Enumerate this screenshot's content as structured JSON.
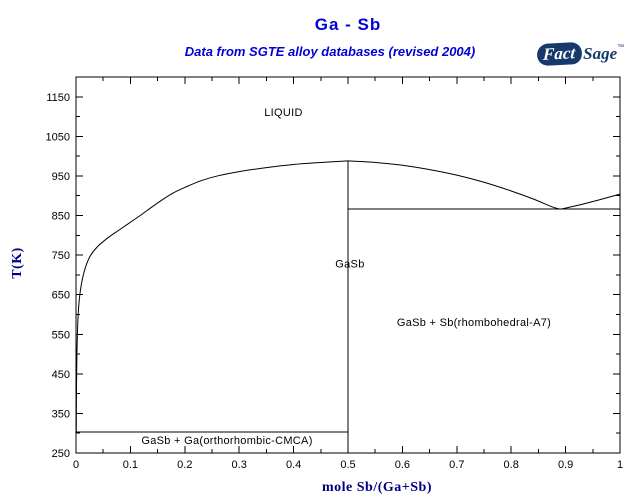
{
  "header": {
    "title": "Ga - Sb",
    "subtitle": "Data from SGTE alloy databases (revised 2004)"
  },
  "logo": {
    "fact": "Fact",
    "sage": "Sage",
    "tm": "™"
  },
  "colors": {
    "title_text": "#0202d6",
    "axis_title_text": "#000080",
    "logo_navy": "#16386b",
    "line_color": "#000000",
    "background": "#ffffff"
  },
  "chart_data": {
    "type": "line",
    "title": "Ga - Sb",
    "subtitle": "Data from SGTE alloy databases (revised 2004)",
    "xlabel": "mole Sb/(Ga+Sb)",
    "ylabel": "T(K)",
    "xlim": [
      0,
      1
    ],
    "ylim": [
      250,
      1200
    ],
    "grid": false,
    "legend": "none",
    "x_tick_values": [
      0,
      0.1,
      0.2,
      0.3,
      0.4,
      0.5,
      0.6,
      0.7,
      0.8,
      0.9,
      1
    ],
    "x_tick_labels": [
      "0",
      "0.1",
      "0.2",
      "0.3",
      "0.4",
      "0.5",
      "0.6",
      "0.7",
      "0.8",
      "0.9",
      "1"
    ],
    "x_minor_step": 0.05,
    "y_tick_values": [
      250,
      350,
      450,
      550,
      650,
      750,
      850,
      950,
      1050,
      1150
    ],
    "y_tick_labels": [
      "250",
      "350",
      "450",
      "550",
      "650",
      "750",
      "850",
      "950",
      "1050",
      "1150"
    ],
    "y_minor_step": 50,
    "series": [
      {
        "name": "liquidus-Ga-side",
        "smooth": true,
        "points": [
          [
            0.0005,
            303
          ],
          [
            0.001,
            430
          ],
          [
            0.002,
            520
          ],
          [
            0.004,
            600
          ],
          [
            0.008,
            660
          ],
          [
            0.015,
            708
          ],
          [
            0.025,
            745
          ],
          [
            0.04,
            772
          ],
          [
            0.06,
            795
          ],
          [
            0.08,
            814
          ],
          [
            0.1,
            833
          ],
          [
            0.12,
            852
          ],
          [
            0.14,
            872
          ],
          [
            0.16,
            891
          ],
          [
            0.18,
            908
          ],
          [
            0.2,
            921
          ],
          [
            0.23,
            938
          ],
          [
            0.26,
            950
          ],
          [
            0.3,
            961
          ],
          [
            0.35,
            971
          ],
          [
            0.4,
            979
          ],
          [
            0.45,
            984
          ],
          [
            0.5,
            988
          ]
        ]
      },
      {
        "name": "liquidus-GaSb-Sb-side",
        "smooth": true,
        "points": [
          [
            0.5,
            988
          ],
          [
            0.55,
            984
          ],
          [
            0.6,
            977
          ],
          [
            0.65,
            966
          ],
          [
            0.7,
            952
          ],
          [
            0.75,
            934
          ],
          [
            0.8,
            912
          ],
          [
            0.84,
            892
          ],
          [
            0.875,
            872
          ],
          [
            0.89,
            866
          ]
        ]
      },
      {
        "name": "liquidus-Sb",
        "smooth": true,
        "points": [
          [
            0.89,
            866
          ],
          [
            0.92,
            875
          ],
          [
            0.96,
            889
          ],
          [
            1.0,
            904
          ]
        ]
      },
      {
        "name": "eutectic-line-GaSb-Sb",
        "smooth": false,
        "points": [
          [
            0.5,
            866
          ],
          [
            1,
            866
          ]
        ]
      },
      {
        "name": "eutectic-line-Ga-GaSb",
        "smooth": false,
        "points": [
          [
            0,
            303
          ],
          [
            0.5,
            303
          ]
        ]
      },
      {
        "name": "GaSb-compound-line",
        "smooth": false,
        "points": [
          [
            0.5,
            250
          ],
          [
            0.5,
            988
          ]
        ]
      }
    ],
    "annotations": [
      {
        "name": "phase-label-liquid",
        "text": "LIQUID",
        "x": 0.3814,
        "T": 1112
      },
      {
        "name": "phase-label-gasb",
        "text": "GaSb",
        "x": 0.5036,
        "T": 729
      },
      {
        "name": "phase-label-gasb-plus-sb",
        "text": "GaSb + Sb(rhombohedral-A7)",
        "x": 0.7316,
        "T": 581
      },
      {
        "name": "phase-label-gasb-plus-ga",
        "text": "GaSb + Ga(orthorhombic-CMCA)",
        "x": 0.2776,
        "T": 283
      }
    ]
  }
}
